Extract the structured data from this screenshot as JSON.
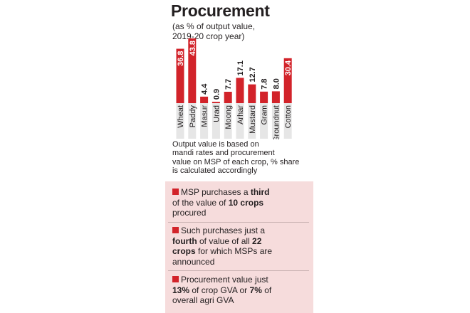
{
  "title": "Procurement",
  "subtitle_lines": [
    "(as % of output value,",
    "2019-20 crop year)"
  ],
  "chart_data": {
    "type": "bar",
    "categories": [
      "Wheat",
      "Paddy",
      "Masur",
      "Urad",
      "Moong",
      "Arhar",
      "Mustard",
      "Gram",
      "Groundnut",
      "Cotton"
    ],
    "values": [
      36.8,
      43.8,
      4.4,
      0.9,
      7.7,
      17.1,
      12.7,
      7.8,
      8.0,
      30.4
    ],
    "value_labels": [
      "36.8",
      "43.8",
      "4.4",
      "0.9",
      "7.7",
      "17.1",
      "12.7",
      "7.8",
      "8.0",
      "30.4"
    ],
    "ylim": [
      0,
      43.8
    ],
    "bar_color": "#d2232a",
    "track_color": "#e6e6e6",
    "grid": false,
    "legend": "none"
  },
  "note_lines": [
    "Output value is based on",
    "mandi rates and procurement",
    "value on MSP of each crop, % share",
    "is calculated accordingly"
  ],
  "facts": [
    {
      "lines": [
        [
          {
            "t": "MSP purchases a "
          },
          {
            "t": "third",
            "b": true
          }
        ],
        [
          {
            "t": "of the value of "
          },
          {
            "t": "10 crops",
            "b": true
          }
        ],
        [
          {
            "t": "procured"
          }
        ]
      ]
    },
    {
      "lines": [
        [
          {
            "t": "Such purchases just a"
          }
        ],
        [
          {
            "t": "fourth",
            "b": true
          },
          {
            "t": " of value of all "
          },
          {
            "t": "22",
            "b": true
          }
        ],
        [
          {
            "t": "crops",
            "b": true
          },
          {
            "t": " for which MSPs are"
          }
        ],
        [
          {
            "t": "announced"
          }
        ]
      ]
    },
    {
      "lines": [
        [
          {
            "t": "Procurement value just"
          }
        ],
        [
          {
            "t": "13%",
            "b": true
          },
          {
            "t": " of crop GVA or "
          },
          {
            "t": "7%",
            "b": true
          },
          {
            "t": " of"
          }
        ],
        [
          {
            "t": "overall agri GVA"
          }
        ]
      ]
    }
  ],
  "colors": {
    "accent": "#d2232a",
    "facts_background": "#f6dcdc"
  }
}
